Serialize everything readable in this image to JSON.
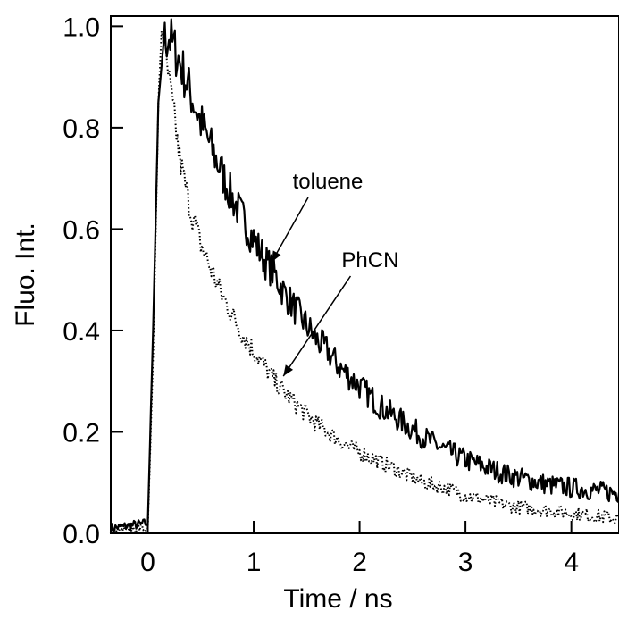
{
  "chart_data": {
    "type": "line",
    "xlabel": "Time / ns",
    "ylabel": "Fluo. Int.",
    "xlim": [
      -0.35,
      4.45
    ],
    "ylim": [
      0.0,
      1.02
    ],
    "x_ticks": [
      0,
      1,
      2,
      3,
      4
    ],
    "x_tick_labels": [
      "0",
      "1",
      "2",
      "3",
      "4"
    ],
    "y_ticks": [
      0.0,
      0.2,
      0.4,
      0.6,
      0.8,
      1.0
    ],
    "y_tick_labels": [
      "0.0",
      "0.2",
      "0.4",
      "0.6",
      "0.8",
      "1.0"
    ],
    "grid": false,
    "series": [
      {
        "name": "toluene",
        "style": "solid",
        "color": "#000000",
        "x": [
          -0.35,
          0.0,
          0.05,
          0.1,
          0.15,
          0.2,
          0.3,
          0.4,
          0.5,
          0.6,
          0.7,
          0.8,
          0.9,
          1.0,
          1.1,
          1.2,
          1.3,
          1.4,
          1.5,
          1.6,
          1.7,
          1.8,
          1.9,
          2.0,
          2.2,
          2.4,
          2.6,
          2.8,
          3.0,
          3.2,
          3.4,
          3.6,
          3.8,
          4.0,
          4.2,
          4.4,
          4.45
        ],
        "values": [
          0.01,
          0.02,
          0.4,
          0.85,
          0.97,
          0.98,
          0.93,
          0.87,
          0.81,
          0.76,
          0.71,
          0.66,
          0.62,
          0.58,
          0.54,
          0.51,
          0.47,
          0.44,
          0.41,
          0.38,
          0.36,
          0.33,
          0.31,
          0.29,
          0.25,
          0.22,
          0.19,
          0.165,
          0.145,
          0.13,
          0.115,
          0.105,
          0.095,
          0.09,
          0.085,
          0.08,
          0.08
        ],
        "noise": 0.035
      },
      {
        "name": "PhCN",
        "style": "dotted",
        "color": "#000000",
        "x": [
          -0.35,
          0.0,
          0.05,
          0.1,
          0.13,
          0.18,
          0.25,
          0.3,
          0.4,
          0.5,
          0.6,
          0.7,
          0.8,
          0.9,
          1.0,
          1.1,
          1.2,
          1.3,
          1.4,
          1.5,
          1.6,
          1.7,
          1.8,
          1.9,
          2.0,
          2.2,
          2.4,
          2.6,
          2.8,
          3.0,
          3.2,
          3.4,
          3.6,
          3.8,
          4.0,
          4.2,
          4.4,
          4.45
        ],
        "values": [
          0.01,
          0.01,
          0.35,
          0.85,
          0.99,
          0.92,
          0.82,
          0.74,
          0.64,
          0.57,
          0.52,
          0.47,
          0.43,
          0.39,
          0.36,
          0.33,
          0.3,
          0.275,
          0.255,
          0.235,
          0.215,
          0.2,
          0.185,
          0.17,
          0.16,
          0.14,
          0.12,
          0.1,
          0.09,
          0.075,
          0.065,
          0.055,
          0.05,
          0.045,
          0.04,
          0.035,
          0.03,
          0.03
        ],
        "noise": 0.025
      }
    ],
    "annotations": [
      {
        "text": "toluene",
        "x": 1.7,
        "y": 0.68,
        "arrow_to": [
          1.17,
          0.535
        ]
      },
      {
        "text": "PhCN",
        "x": 2.1,
        "y": 0.525,
        "arrow_to": [
          1.28,
          0.31
        ]
      }
    ]
  }
}
